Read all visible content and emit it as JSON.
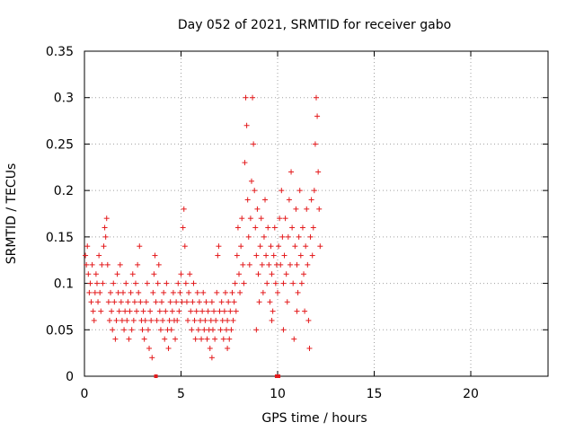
{
  "chart_data": {
    "type": "scatter",
    "title": "Day 052 of 2021, SRMTID for receiver gabo",
    "xlabel": "GPS time / hours",
    "ylabel": "SRMTID / TECUs",
    "xlim": [
      0,
      24
    ],
    "ylim": [
      0,
      0.35
    ],
    "xticks": [
      0,
      5,
      10,
      15,
      20
    ],
    "xtick_labels": [
      "0",
      "5",
      "10",
      "15",
      "20"
    ],
    "yticks": [
      0,
      0.05,
      0.1,
      0.15,
      0.2,
      0.25,
      0.3,
      0.35
    ],
    "ytick_labels": [
      "0",
      "0.05",
      "0.1",
      "0.15",
      "0.2",
      "0.25",
      "0.3",
      "0.35"
    ],
    "grid": true,
    "marker": "plus",
    "colors": {
      "series": "#e41a1c",
      "grid": "#a0a0a0",
      "axis": "#000000"
    },
    "series": [
      {
        "name": "SRMTID",
        "points": [
          [
            0.05,
            0.13
          ],
          [
            0.1,
            0.12
          ],
          [
            0.15,
            0.14
          ],
          [
            0.2,
            0.11
          ],
          [
            0.25,
            0.09
          ],
          [
            0.3,
            0.1
          ],
          [
            0.35,
            0.08
          ],
          [
            0.4,
            0.12
          ],
          [
            0.45,
            0.07
          ],
          [
            0.5,
            0.06
          ],
          [
            0.55,
            0.09
          ],
          [
            0.6,
            0.11
          ],
          [
            0.65,
            0.1
          ],
          [
            0.7,
            0.08
          ],
          [
            0.75,
            0.13
          ],
          [
            0.8,
            0.09
          ],
          [
            0.85,
            0.07
          ],
          [
            0.9,
            0.12
          ],
          [
            0.95,
            0.1
          ],
          [
            1.0,
            0.14
          ],
          [
            1.05,
            0.16
          ],
          [
            1.1,
            0.15
          ],
          [
            1.15,
            0.17
          ],
          [
            1.2,
            0.12
          ],
          [
            1.25,
            0.08
          ],
          [
            1.3,
            0.06
          ],
          [
            1.35,
            0.09
          ],
          [
            1.4,
            0.07
          ],
          [
            1.45,
            0.05
          ],
          [
            1.5,
            0.1
          ],
          [
            1.55,
            0.08
          ],
          [
            1.6,
            0.04
          ],
          [
            1.65,
            0.06
          ],
          [
            1.7,
            0.11
          ],
          [
            1.75,
            0.09
          ],
          [
            1.8,
            0.07
          ],
          [
            1.85,
            0.12
          ],
          [
            1.9,
            0.08
          ],
          [
            1.95,
            0.06
          ],
          [
            2.0,
            0.09
          ],
          [
            2.05,
            0.05
          ],
          [
            2.1,
            0.07
          ],
          [
            2.15,
            0.1
          ],
          [
            2.2,
            0.06
          ],
          [
            2.25,
            0.08
          ],
          [
            2.3,
            0.04
          ],
          [
            2.35,
            0.07
          ],
          [
            2.4,
            0.09
          ],
          [
            2.45,
            0.05
          ],
          [
            2.5,
            0.11
          ],
          [
            2.55,
            0.06
          ],
          [
            2.6,
            0.08
          ],
          [
            2.65,
            0.1
          ],
          [
            2.7,
            0.07
          ],
          [
            2.75,
            0.12
          ],
          [
            2.8,
            0.09
          ],
          [
            2.85,
            0.14
          ],
          [
            2.9,
            0.08
          ],
          [
            2.95,
            0.06
          ],
          [
            3.0,
            0.05
          ],
          [
            3.05,
            0.07
          ],
          [
            3.1,
            0.04
          ],
          [
            3.15,
            0.06
          ],
          [
            3.2,
            0.08
          ],
          [
            3.25,
            0.1
          ],
          [
            3.3,
            0.05
          ],
          [
            3.35,
            0.03
          ],
          [
            3.4,
            0.07
          ],
          [
            3.45,
            0.06
          ],
          [
            3.5,
            0.02
          ],
          [
            3.55,
            0.09
          ],
          [
            3.6,
            0.11
          ],
          [
            3.65,
            0.13
          ],
          [
            3.7,
            0.08
          ],
          [
            3.75,
            0.06
          ],
          [
            3.8,
            0.1
          ],
          [
            3.85,
            0.12
          ],
          [
            3.9,
            0.07
          ],
          [
            3.95,
            0.05
          ],
          [
            4.0,
            0.08
          ],
          [
            4.05,
            0.06
          ],
          [
            4.1,
            0.09
          ],
          [
            4.15,
            0.04
          ],
          [
            4.2,
            0.07
          ],
          [
            4.25,
            0.1
          ],
          [
            4.3,
            0.05
          ],
          [
            4.35,
            0.03
          ],
          [
            4.4,
            0.06
          ],
          [
            4.45,
            0.08
          ],
          [
            4.5,
            0.05
          ],
          [
            4.55,
            0.07
          ],
          [
            4.6,
            0.09
          ],
          [
            4.65,
            0.06
          ],
          [
            4.7,
            0.04
          ],
          [
            4.75,
            0.08
          ],
          [
            4.8,
            0.06
          ],
          [
            4.85,
            0.1
          ],
          [
            4.9,
            0.07
          ],
          [
            4.95,
            0.09
          ],
          [
            5.0,
            0.11
          ],
          [
            5.05,
            0.08
          ],
          [
            5.1,
            0.16
          ],
          [
            5.15,
            0.18
          ],
          [
            5.2,
            0.14
          ],
          [
            5.25,
            0.1
          ],
          [
            5.3,
            0.08
          ],
          [
            5.35,
            0.06
          ],
          [
            5.4,
            0.09
          ],
          [
            5.45,
            0.11
          ],
          [
            5.5,
            0.07
          ],
          [
            5.55,
            0.05
          ],
          [
            5.6,
            0.08
          ],
          [
            5.65,
            0.1
          ],
          [
            5.7,
            0.06
          ],
          [
            5.75,
            0.04
          ],
          [
            5.8,
            0.07
          ],
          [
            5.85,
            0.09
          ],
          [
            5.9,
            0.05
          ],
          [
            5.95,
            0.08
          ],
          [
            6.0,
            0.06
          ],
          [
            6.05,
            0.04
          ],
          [
            6.1,
            0.07
          ],
          [
            6.15,
            0.09
          ],
          [
            6.2,
            0.05
          ],
          [
            6.25,
            0.06
          ],
          [
            6.3,
            0.08
          ],
          [
            6.35,
            0.04
          ],
          [
            6.4,
            0.07
          ],
          [
            6.45,
            0.05
          ],
          [
            6.5,
            0.03
          ],
          [
            6.55,
            0.06
          ],
          [
            6.6,
            0.08
          ],
          [
            6.65,
            0.05
          ],
          [
            6.7,
            0.07
          ],
          [
            6.75,
            0.04
          ],
          [
            6.8,
            0.06
          ],
          [
            6.85,
            0.09
          ],
          [
            6.9,
            0.13
          ],
          [
            6.95,
            0.14
          ],
          [
            7.0,
            0.07
          ],
          [
            7.05,
            0.05
          ],
          [
            7.1,
            0.08
          ],
          [
            7.15,
            0.06
          ],
          [
            7.2,
            0.04
          ],
          [
            7.25,
            0.07
          ],
          [
            7.3,
            0.09
          ],
          [
            7.35,
            0.05
          ],
          [
            7.4,
            0.06
          ],
          [
            7.45,
            0.08
          ],
          [
            7.5,
            0.04
          ],
          [
            7.55,
            0.07
          ],
          [
            7.6,
            0.05
          ],
          [
            7.65,
            0.09
          ],
          [
            7.7,
            0.06
          ],
          [
            7.75,
            0.08
          ],
          [
            7.8,
            0.1
          ],
          [
            7.85,
            0.07
          ],
          [
            7.9,
            0.13
          ],
          [
            7.95,
            0.16
          ],
          [
            8.0,
            0.11
          ],
          [
            8.05,
            0.09
          ],
          [
            8.1,
            0.14
          ],
          [
            8.15,
            0.17
          ],
          [
            8.2,
            0.12
          ],
          [
            8.25,
            0.1
          ],
          [
            8.3,
            0.23
          ],
          [
            8.35,
            0.3
          ],
          [
            8.4,
            0.27
          ],
          [
            8.45,
            0.19
          ],
          [
            8.5,
            0.15
          ],
          [
            8.55,
            0.12
          ],
          [
            8.6,
            0.17
          ],
          [
            8.65,
            0.21
          ],
          [
            8.7,
            0.3
          ],
          [
            8.75,
            0.25
          ],
          [
            8.8,
            0.2
          ],
          [
            8.85,
            0.16
          ],
          [
            8.9,
            0.13
          ],
          [
            8.95,
            0.18
          ],
          [
            9.0,
            0.11
          ],
          [
            9.05,
            0.08
          ],
          [
            9.1,
            0.14
          ],
          [
            9.15,
            0.17
          ],
          [
            9.2,
            0.12
          ],
          [
            9.25,
            0.09
          ],
          [
            9.3,
            0.15
          ],
          [
            9.35,
            0.19
          ],
          [
            9.4,
            0.13
          ],
          [
            9.45,
            0.1
          ],
          [
            9.5,
            0.16
          ],
          [
            9.55,
            0.12
          ],
          [
            9.6,
            0.08
          ],
          [
            9.65,
            0.14
          ],
          [
            9.7,
            0.11
          ],
          [
            9.75,
            0.07
          ],
          [
            9.8,
            0.13
          ],
          [
            9.85,
            0.16
          ],
          [
            9.9,
            0.1
          ],
          [
            9.95,
            0.12
          ],
          [
            10.0,
            0.09
          ],
          [
            10.05,
            0.14
          ],
          [
            10.1,
            0.17
          ],
          [
            10.15,
            0.12
          ],
          [
            10.2,
            0.2
          ],
          [
            10.25,
            0.15
          ],
          [
            10.3,
            0.1
          ],
          [
            10.35,
            0.13
          ],
          [
            10.4,
            0.17
          ],
          [
            10.45,
            0.11
          ],
          [
            10.5,
            0.08
          ],
          [
            10.55,
            0.15
          ],
          [
            10.6,
            0.19
          ],
          [
            10.65,
            0.12
          ],
          [
            10.7,
            0.22
          ],
          [
            10.75,
            0.16
          ],
          [
            10.8,
            0.1
          ],
          [
            10.85,
            0.04
          ],
          [
            10.9,
            0.14
          ],
          [
            10.95,
            0.18
          ],
          [
            11.0,
            0.12
          ],
          [
            11.05,
            0.09
          ],
          [
            11.1,
            0.15
          ],
          [
            11.15,
            0.2
          ],
          [
            11.2,
            0.13
          ],
          [
            11.25,
            0.1
          ],
          [
            11.3,
            0.16
          ],
          [
            11.35,
            0.11
          ],
          [
            11.4,
            0.07
          ],
          [
            11.45,
            0.14
          ],
          [
            11.5,
            0.18
          ],
          [
            11.55,
            0.12
          ],
          [
            11.6,
            0.06
          ],
          [
            11.65,
            0.03
          ],
          [
            11.7,
            0.15
          ],
          [
            11.75,
            0.19
          ],
          [
            11.8,
            0.13
          ],
          [
            11.85,
            0.16
          ],
          [
            11.9,
            0.2
          ],
          [
            11.95,
            0.25
          ],
          [
            12.0,
            0.3
          ],
          [
            12.05,
            0.28
          ],
          [
            12.1,
            0.22
          ],
          [
            12.15,
            0.18
          ],
          [
            12.2,
            0.14
          ],
          [
            11.0,
            0.07
          ],
          [
            10.3,
            0.05
          ],
          [
            9.7,
            0.06
          ],
          [
            8.9,
            0.05
          ],
          [
            7.4,
            0.03
          ],
          [
            6.6,
            0.02
          ]
        ]
      }
    ],
    "axis_markers": [
      3.7,
      9.95,
      10.05
    ]
  }
}
